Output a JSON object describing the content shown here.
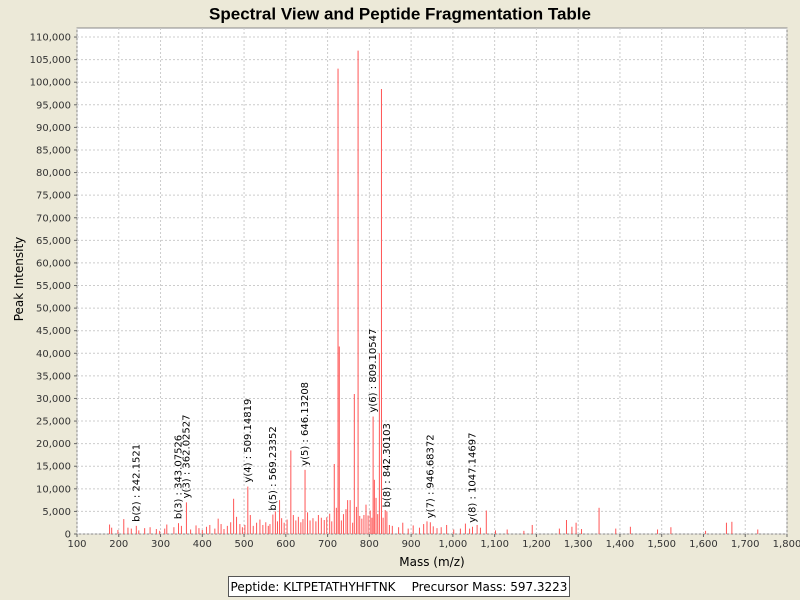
{
  "chart_data": {
    "type": "bar",
    "title": "Spectral View and Peptide Fragmentation Table",
    "xlabel": "Mass (m/z)",
    "ylabel": "Peak Intensity",
    "xlim": [
      100,
      1800
    ],
    "ylim": [
      0,
      112000
    ],
    "x_ticks": [
      100,
      200,
      300,
      400,
      500,
      600,
      700,
      800,
      900,
      1000,
      1100,
      1200,
      1300,
      1400,
      1500,
      1600,
      1700,
      1800
    ],
    "x_tick_labels": [
      "100",
      "200",
      "300",
      "400",
      "500",
      "600",
      "700",
      "800",
      "900",
      "1,000",
      "1,100",
      "1,200",
      "1,300",
      "1,400",
      "1,500",
      "1,600",
      "1,700",
      "1,800"
    ],
    "y_ticks": [
      0,
      5000,
      10000,
      15000,
      20000,
      25000,
      30000,
      35000,
      40000,
      45000,
      50000,
      55000,
      60000,
      65000,
      70000,
      75000,
      80000,
      85000,
      90000,
      95000,
      100000,
      105000,
      110000
    ],
    "y_tick_labels": [
      "0",
      "5,000",
      "10,000",
      "15,000",
      "20,000",
      "25,000",
      "30,000",
      "35,000",
      "40,000",
      "45,000",
      "50,000",
      "55,000",
      "60,000",
      "65,000",
      "70,000",
      "75,000",
      "80,000",
      "85,000",
      "90,000",
      "95,000",
      "100,000",
      "105,000",
      "110,000"
    ],
    "grid": true,
    "peak_color": "#ff5555",
    "peaks": [
      [
        178,
        2100
      ],
      [
        183,
        1400
      ],
      [
        198,
        900
      ],
      [
        212,
        3300
      ],
      [
        222,
        1400
      ],
      [
        230,
        1200
      ],
      [
        242,
        1800
      ],
      [
        248,
        800
      ],
      [
        262,
        1300
      ],
      [
        275,
        1500
      ],
      [
        290,
        1100
      ],
      [
        298,
        700
      ],
      [
        310,
        1200
      ],
      [
        315,
        2100
      ],
      [
        332,
        1500
      ],
      [
        343,
        2400
      ],
      [
        350,
        1800
      ],
      [
        362,
        7000
      ],
      [
        372,
        1000
      ],
      [
        385,
        1900
      ],
      [
        392,
        1300
      ],
      [
        400,
        900
      ],
      [
        410,
        1600
      ],
      [
        418,
        2000
      ],
      [
        430,
        1200
      ],
      [
        438,
        3400
      ],
      [
        445,
        2200
      ],
      [
        452,
        1100
      ],
      [
        460,
        1800
      ],
      [
        468,
        2600
      ],
      [
        475,
        7800
      ],
      [
        482,
        3800
      ],
      [
        490,
        2200
      ],
      [
        496,
        1500
      ],
      [
        502,
        2000
      ],
      [
        509,
        10500
      ],
      [
        515,
        4200
      ],
      [
        522,
        1800
      ],
      [
        530,
        2500
      ],
      [
        538,
        3200
      ],
      [
        545,
        2000
      ],
      [
        552,
        2600
      ],
      [
        558,
        1800
      ],
      [
        562,
        2200
      ],
      [
        569,
        4300
      ],
      [
        575,
        5000
      ],
      [
        580,
        2800
      ],
      [
        585,
        7500
      ],
      [
        590,
        3500
      ],
      [
        596,
        2500
      ],
      [
        603,
        3200
      ],
      [
        612,
        18500
      ],
      [
        618,
        4200
      ],
      [
        624,
        3000
      ],
      [
        630,
        3800
      ],
      [
        636,
        2600
      ],
      [
        641,
        3300
      ],
      [
        646,
        14200
      ],
      [
        652,
        4800
      ],
      [
        658,
        3000
      ],
      [
        665,
        3500
      ],
      [
        672,
        2800
      ],
      [
        678,
        4200
      ],
      [
        685,
        3600
      ],
      [
        692,
        3100
      ],
      [
        698,
        3700
      ],
      [
        705,
        4500
      ],
      [
        710,
        2800
      ],
      [
        716,
        15500
      ],
      [
        721,
        5800
      ],
      [
        725,
        103000
      ],
      [
        728,
        41500
      ],
      [
        733,
        3000
      ],
      [
        738,
        4400
      ],
      [
        744,
        5500
      ],
      [
        748,
        7500
      ],
      [
        754,
        7500
      ],
      [
        760,
        2500
      ],
      [
        764,
        31000
      ],
      [
        769,
        6000
      ],
      [
        773,
        107000
      ],
      [
        777,
        4000
      ],
      [
        782,
        3400
      ],
      [
        787,
        4200
      ],
      [
        792,
        6500
      ],
      [
        797,
        4100
      ],
      [
        802,
        5200
      ],
      [
        806,
        3600
      ],
      [
        809,
        26000
      ],
      [
        812,
        12000
      ],
      [
        816,
        8000
      ],
      [
        820,
        4400
      ],
      [
        824,
        40000
      ],
      [
        829,
        98500
      ],
      [
        833,
        3600
      ],
      [
        838,
        5300
      ],
      [
        842,
        5000
      ],
      [
        848,
        2000
      ],
      [
        855,
        1800
      ],
      [
        870,
        1500
      ],
      [
        880,
        2500
      ],
      [
        893,
        1200
      ],
      [
        905,
        1900
      ],
      [
        920,
        1400
      ],
      [
        930,
        2200
      ],
      [
        938,
        2800
      ],
      [
        946,
        2600
      ],
      [
        953,
        1700
      ],
      [
        962,
        1300
      ],
      [
        972,
        1500
      ],
      [
        985,
        2000
      ],
      [
        1002,
        1000
      ],
      [
        1018,
        1200
      ],
      [
        1030,
        2300
      ],
      [
        1040,
        1200
      ],
      [
        1047,
        1600
      ],
      [
        1058,
        2000
      ],
      [
        1066,
        1400
      ],
      [
        1080,
        5200
      ],
      [
        1102,
        800
      ],
      [
        1130,
        1000
      ],
      [
        1170,
        700
      ],
      [
        1190,
        2000
      ],
      [
        1255,
        1200
      ],
      [
        1272,
        3100
      ],
      [
        1285,
        1600
      ],
      [
        1295,
        2500
      ],
      [
        1308,
        1100
      ],
      [
        1350,
        5800
      ],
      [
        1390,
        1200
      ],
      [
        1425,
        1600
      ],
      [
        1490,
        1000
      ],
      [
        1522,
        1500
      ],
      [
        1605,
        700
      ],
      [
        1655,
        2500
      ],
      [
        1668,
        2700
      ],
      [
        1730,
        1000
      ]
    ],
    "annotations": [
      {
        "x": 242.1521,
        "y": 1800,
        "label": "b(2) : 242.1521"
      },
      {
        "x": 343.07526,
        "y": 2400,
        "label": "b(3) : 343.07526"
      },
      {
        "x": 362.02527,
        "y": 7000,
        "label": "y(3) : 362.02527"
      },
      {
        "x": 509.14819,
        "y": 10500,
        "label": "y(4) : 509.14819"
      },
      {
        "x": 569.23352,
        "y": 4300,
        "label": "b(5) : 569.23352"
      },
      {
        "x": 646.13208,
        "y": 14200,
        "label": "y(5) : 646.13208"
      },
      {
        "x": 809.10547,
        "y": 26000,
        "label": "y(6) : 809.10547"
      },
      {
        "x": 842.30103,
        "y": 5000,
        "label": "b(8) : 842.30103"
      },
      {
        "x": 946.68372,
        "y": 2600,
        "label": "y(7) : 946.68372"
      },
      {
        "x": 1047.14697,
        "y": 1600,
        "label": "y(8) : 1047.14697"
      }
    ]
  },
  "legend": {
    "peptide": "Peptide: KLTPETATHYHFTNK",
    "precursor": "Precursor Mass: 597.3223"
  }
}
